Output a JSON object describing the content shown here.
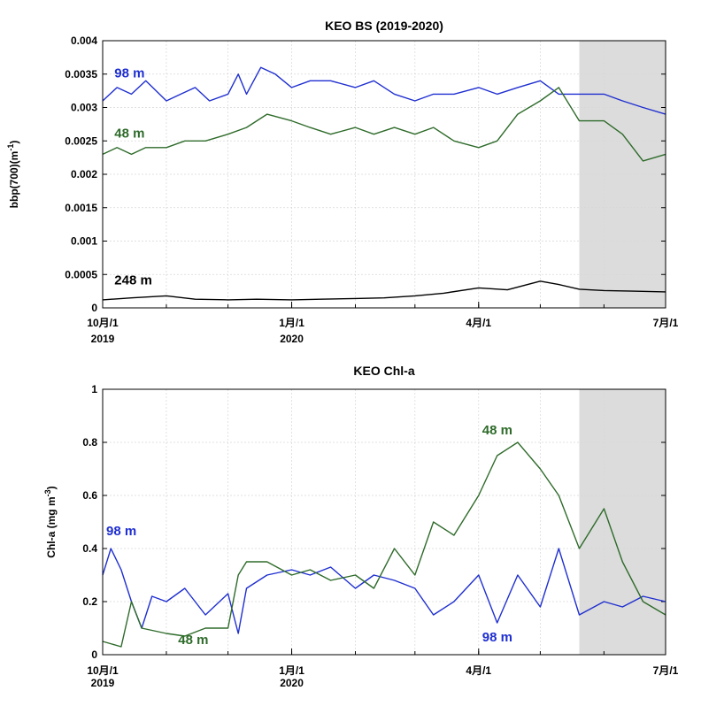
{
  "chart_data": [
    {
      "type": "line",
      "title": "KEO BS (2019-2020)",
      "ylabel": "bbp(700)(m",
      "ylabel_sup": "-1",
      "ylabel_close": ")",
      "ylim": [
        0,
        0.004
      ],
      "y_ticks": [
        "0",
        "0.0005",
        "0.001",
        "0.0015",
        "0.002",
        "0.0025",
        "0.003",
        "0.0035",
        "0.004"
      ],
      "x_ticks": [
        "10月/1",
        "1月/1",
        "4月/1",
        "7月/1"
      ],
      "year_labels": [
        "2019",
        "2020"
      ],
      "shaded_from": "2020-05-20",
      "grid": true,
      "series": [
        {
          "name": "98 m",
          "color": "#1f2fd0",
          "x": [
            "2019-10-01",
            "2019-10-08",
            "2019-10-15",
            "2019-10-22",
            "2019-11-01",
            "2019-11-08",
            "2019-11-15",
            "2019-11-22",
            "2019-12-01",
            "2019-12-06",
            "2019-12-10",
            "2019-12-17",
            "2019-12-24",
            "2020-01-01",
            "2020-01-10",
            "2020-01-20",
            "2020-02-01",
            "2020-02-10",
            "2020-02-20",
            "2020-03-01",
            "2020-03-10",
            "2020-03-20",
            "2020-04-01",
            "2020-04-10",
            "2020-04-20",
            "2020-05-01",
            "2020-05-10",
            "2020-05-20",
            "2020-06-01",
            "2020-06-10",
            "2020-06-20",
            "2020-07-01"
          ],
          "values": [
            0.0031,
            0.0033,
            0.0032,
            0.0034,
            0.0031,
            0.0032,
            0.0033,
            0.0031,
            0.0032,
            0.0035,
            0.0032,
            0.0036,
            0.0035,
            0.0033,
            0.0034,
            0.0034,
            0.0033,
            0.0034,
            0.0032,
            0.0031,
            0.0032,
            0.0032,
            0.0033,
            0.0032,
            0.0033,
            0.0034,
            0.0032,
            0.0032,
            0.0032,
            0.0031,
            0.003,
            0.0029
          ]
        },
        {
          "name": "48 m",
          "color": "#2e6b2a",
          "x": [
            "2019-10-01",
            "2019-10-08",
            "2019-10-15",
            "2019-10-22",
            "2019-11-01",
            "2019-11-10",
            "2019-11-20",
            "2019-12-01",
            "2019-12-10",
            "2019-12-20",
            "2020-01-01",
            "2020-01-10",
            "2020-01-20",
            "2020-02-01",
            "2020-02-10",
            "2020-02-20",
            "2020-03-01",
            "2020-03-10",
            "2020-03-20",
            "2020-04-01",
            "2020-04-10",
            "2020-04-20",
            "2020-05-01",
            "2020-05-10",
            "2020-05-20",
            "2020-06-01",
            "2020-06-10",
            "2020-06-20",
            "2020-07-01"
          ],
          "values": [
            0.0023,
            0.0024,
            0.0023,
            0.0024,
            0.0024,
            0.0025,
            0.0025,
            0.0026,
            0.0027,
            0.0029,
            0.0028,
            0.0027,
            0.0026,
            0.0027,
            0.0026,
            0.0027,
            0.0026,
            0.0027,
            0.0025,
            0.0024,
            0.0025,
            0.0029,
            0.0031,
            0.0033,
            0.0028,
            0.0028,
            0.0026,
            0.0022,
            0.0023
          ]
        },
        {
          "name": "248 m",
          "color": "#000000",
          "x": [
            "2019-10-01",
            "2019-10-15",
            "2019-11-01",
            "2019-11-15",
            "2019-12-01",
            "2019-12-15",
            "2020-01-01",
            "2020-01-15",
            "2020-02-01",
            "2020-02-15",
            "2020-03-01",
            "2020-03-15",
            "2020-04-01",
            "2020-04-15",
            "2020-05-01",
            "2020-05-10",
            "2020-05-20",
            "2020-06-01",
            "2020-06-15",
            "2020-07-01"
          ],
          "values": [
            0.00012,
            0.00015,
            0.00018,
            0.00013,
            0.00012,
            0.00013,
            0.00012,
            0.00013,
            0.00014,
            0.00015,
            0.00018,
            0.00022,
            0.0003,
            0.00027,
            0.0004,
            0.00035,
            0.00028,
            0.00026,
            0.00025,
            0.00024
          ]
        }
      ],
      "labels": [
        {
          "text": "98 m",
          "color": "#1f2fd0",
          "x": "2019-10-05",
          "y": 0.00345
        },
        {
          "text": "48 m",
          "color": "#2e6b2a",
          "x": "2019-10-05",
          "y": 0.00255
        },
        {
          "text": "248 m",
          "color": "#000000",
          "x": "2019-10-05",
          "y": 0.00035
        }
      ]
    },
    {
      "type": "line",
      "title": "KEO Chl-a",
      "ylabel": "Chl-a (mg m",
      "ylabel_sup": "-3",
      "ylabel_close": ")",
      "ylim": [
        0,
        1
      ],
      "y_ticks": [
        "0",
        "0.2",
        "0.4",
        "0.6",
        "0.8",
        "1"
      ],
      "x_ticks": [
        "10月/1",
        "1月/1",
        "4月/1",
        "7月/1"
      ],
      "year_labels": [
        "2019",
        "2020"
      ],
      "shaded_from": "2020-05-20",
      "grid": true,
      "series": [
        {
          "name": "98 m",
          "color": "#1f2fd0",
          "x": [
            "2019-10-01",
            "2019-10-05",
            "2019-10-10",
            "2019-10-15",
            "2019-10-20",
            "2019-10-25",
            "2019-11-01",
            "2019-11-10",
            "2019-11-20",
            "2019-12-01",
            "2019-12-06",
            "2019-12-10",
            "2019-12-20",
            "2020-01-01",
            "2020-01-10",
            "2020-01-20",
            "2020-02-01",
            "2020-02-10",
            "2020-02-20",
            "2020-03-01",
            "2020-03-10",
            "2020-03-20",
            "2020-04-01",
            "2020-04-10",
            "2020-04-20",
            "2020-05-01",
            "2020-05-10",
            "2020-05-20",
            "2020-06-01",
            "2020-06-10",
            "2020-06-20",
            "2020-07-01"
          ],
          "values": [
            0.3,
            0.4,
            0.32,
            0.2,
            0.1,
            0.22,
            0.2,
            0.25,
            0.15,
            0.23,
            0.08,
            0.25,
            0.3,
            0.32,
            0.3,
            0.33,
            0.25,
            0.3,
            0.28,
            0.25,
            0.15,
            0.2,
            0.3,
            0.12,
            0.3,
            0.18,
            0.4,
            0.15,
            0.2,
            0.18,
            0.22,
            0.2
          ]
        },
        {
          "name": "48 m",
          "color": "#2e6b2a",
          "x": [
            "2019-10-01",
            "2019-10-10",
            "2019-10-15",
            "2019-10-20",
            "2019-11-01",
            "2019-11-10",
            "2019-11-20",
            "2019-12-01",
            "2019-12-06",
            "2019-12-10",
            "2019-12-20",
            "2020-01-01",
            "2020-01-10",
            "2020-01-20",
            "2020-02-01",
            "2020-02-10",
            "2020-02-20",
            "2020-03-01",
            "2020-03-10",
            "2020-03-20",
            "2020-04-01",
            "2020-04-10",
            "2020-04-20",
            "2020-05-01",
            "2020-05-10",
            "2020-05-20",
            "2020-06-01",
            "2020-06-10",
            "2020-06-20",
            "2020-07-01"
          ],
          "values": [
            0.05,
            0.03,
            0.2,
            0.1,
            0.08,
            0.07,
            0.1,
            0.1,
            0.3,
            0.35,
            0.35,
            0.3,
            0.32,
            0.28,
            0.3,
            0.25,
            0.4,
            0.3,
            0.5,
            0.45,
            0.6,
            0.75,
            0.8,
            0.7,
            0.6,
            0.4,
            0.55,
            0.35,
            0.2,
            0.15
          ]
        }
      ],
      "labels": [
        {
          "text": "98 m",
          "color": "#1f2fd0",
          "x": "2019-10-01",
          "y": 0.45
        },
        {
          "text": "48 m",
          "color": "#2e6b2a",
          "x": "2019-11-05",
          "y": 0.04
        },
        {
          "text": "98 m",
          "color": "#1f2fd0",
          "x": "2020-04-01",
          "y": 0.05
        },
        {
          "text": "48 m",
          "color": "#2e6b2a",
          "x": "2020-04-01",
          "y": 0.83
        }
      ]
    }
  ]
}
